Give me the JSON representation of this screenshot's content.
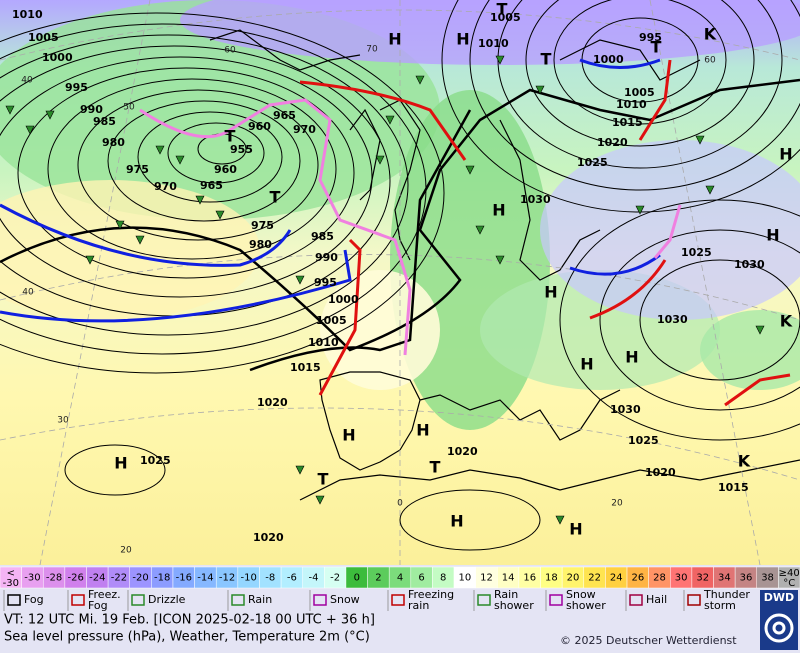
{
  "map": {
    "isobar_labels": [
      "1010",
      "1005",
      "1000",
      "995",
      "990",
      "985",
      "980",
      "975",
      "970",
      "965",
      "960",
      "955",
      "960",
      "965",
      "970",
      "975",
      "980",
      "985",
      "990",
      "995",
      "1000",
      "1005",
      "1010",
      "1015",
      "1020",
      "1025",
      "1020",
      "1020",
      "1005",
      "1010",
      "1000",
      "995",
      "1005",
      "1010",
      "1015",
      "1020",
      "1025",
      "1030",
      "1025",
      "1030",
      "1030",
      "1030",
      "1025",
      "1020",
      "1015"
    ],
    "pressure_centers": [
      "T",
      "T",
      "T",
      "T",
      "T",
      "T",
      "T",
      "H",
      "H",
      "H",
      "H",
      "H",
      "H",
      "H",
      "H",
      "H",
      "H",
      "H",
      "H",
      "H",
      "K",
      "K",
      "K"
    ],
    "grid_labels": [
      "60",
      "50",
      "70",
      "60",
      "40",
      "40",
      "30",
      "20",
      "0",
      "20"
    ]
  },
  "temperature_scale": {
    "low_label": [
      "<",
      "-30"
    ],
    "low_color": "#f4b4f4",
    "values": [
      -30,
      -28,
      -26,
      -24,
      -22,
      -20,
      -18,
      -16,
      -14,
      -12,
      -10,
      -8,
      -6,
      -4,
      -2,
      0,
      2,
      4,
      6,
      8,
      10,
      12,
      14,
      16,
      18,
      20,
      22,
      24,
      26,
      28,
      30,
      32,
      34,
      36,
      38
    ],
    "colors": [
      "#e8a0f0",
      "#dc90ec",
      "#d080ec",
      "#c080f0",
      "#b08cf8",
      "#9c94ff",
      "#8c9cff",
      "#84aaff",
      "#86b8ff",
      "#8ac6ff",
      "#94d6ff",
      "#a2e2ff",
      "#b2eeff",
      "#c4f6fa",
      "#d6fff2",
      "#3cbc3c",
      "#5ccc5c",
      "#7cdc7c",
      "#a0eca0",
      "#c4fcc4",
      "#ffffff",
      "#ffffe0",
      "#ffffc4",
      "#ffffa4",
      "#ffff84",
      "#fff46c",
      "#ffe450",
      "#ffd040",
      "#ffb444",
      "#ff9466",
      "#ff7474",
      "#f06464",
      "#e07474",
      "#c48484",
      "#a89494"
    ],
    "high_label": [
      "≥40",
      "°C"
    ],
    "high_color": "#b0b0b0"
  },
  "weather_legend": [
    {
      "lines": [
        "Fog"
      ]
    },
    {
      "lines": [
        "Freez.",
        "Fog"
      ]
    },
    {
      "lines": [
        "Drizzle"
      ]
    },
    {
      "lines": [
        "Rain"
      ]
    },
    {
      "lines": [
        "Snow"
      ]
    },
    {
      "lines": [
        "Freezing",
        "rain"
      ]
    },
    {
      "lines": [
        "Rain",
        "shower"
      ]
    },
    {
      "lines": [
        "Snow",
        "shower"
      ]
    },
    {
      "lines": [
        "Hail"
      ]
    },
    {
      "lines": [
        "Thunder",
        "storm"
      ]
    }
  ],
  "footer": {
    "valid_time": "VT: 12 UTC Mi.  19 Feb. [ICON 2025-02-18  00 UTC + 36 h]",
    "description": "Sea level pressure (hPa), Weather, Temperature 2m (°C)",
    "copyright": "© 2025 Deutscher Wetterdienst",
    "logo": "DWD"
  }
}
